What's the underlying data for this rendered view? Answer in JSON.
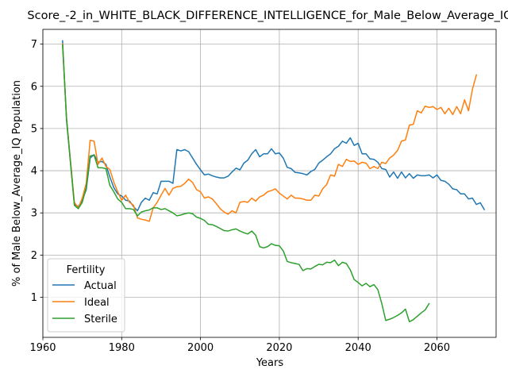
{
  "chart_data": {
    "type": "line",
    "title": "Score_-2_in_WHITE_BLACK_DIFFERENCE_INTELLIGENCE_for_Male_Below_Average_IQ",
    "xlabel": "Years",
    "ylabel": "% of Male Below_Average_IQ Population",
    "xlim": [
      1960,
      2075
    ],
    "ylim": [
      0.05,
      7.35
    ],
    "xticks": [
      1960,
      1980,
      2000,
      2020,
      2040,
      2060
    ],
    "yticks": [
      1,
      2,
      3,
      4,
      5,
      6,
      7
    ],
    "grid": true,
    "legend": {
      "title": "Fertility",
      "position": "lower-left"
    },
    "series": [
      {
        "name": "Actual",
        "color": "#1f77b4",
        "points": [
          [
            1965,
            7.08
          ],
          [
            1966,
            5.2
          ],
          [
            1967,
            4.2
          ],
          [
            1968,
            3.2
          ],
          [
            1969,
            3.15
          ],
          [
            1970,
            3.3
          ],
          [
            1971,
            3.55
          ],
          [
            1972,
            4.3
          ],
          [
            1973,
            4.38
          ],
          [
            1974,
            4.2
          ],
          [
            1975,
            4.22
          ],
          [
            1976,
            4.15
          ],
          [
            1977,
            3.85
          ],
          [
            1978,
            3.6
          ],
          [
            1979,
            3.45
          ],
          [
            1980,
            3.4
          ],
          [
            1981,
            3.3
          ],
          [
            1982,
            3.28
          ],
          [
            1983,
            3.15
          ],
          [
            1984,
            3.05
          ],
          [
            1985,
            3.25
          ],
          [
            1986,
            3.35
          ],
          [
            1987,
            3.3
          ],
          [
            1988,
            3.48
          ],
          [
            1989,
            3.45
          ],
          [
            1990,
            3.75
          ],
          [
            1991,
            3.75
          ],
          [
            1992,
            3.75
          ],
          [
            1993,
            3.7
          ],
          [
            1994,
            4.5
          ],
          [
            1995,
            4.47
          ],
          [
            1996,
            4.5
          ],
          [
            1997,
            4.45
          ],
          [
            1998,
            4.3
          ],
          [
            1999,
            4.15
          ],
          [
            2000,
            4.02
          ],
          [
            2001,
            3.9
          ],
          [
            2002,
            3.92
          ],
          [
            2003,
            3.88
          ],
          [
            2004,
            3.85
          ],
          [
            2005,
            3.83
          ],
          [
            2006,
            3.83
          ],
          [
            2007,
            3.87
          ],
          [
            2008,
            3.97
          ],
          [
            2009,
            4.06
          ],
          [
            2010,
            4.02
          ],
          [
            2011,
            4.18
          ],
          [
            2012,
            4.25
          ],
          [
            2013,
            4.4
          ],
          [
            2014,
            4.5
          ],
          [
            2015,
            4.33
          ],
          [
            2016,
            4.4
          ],
          [
            2017,
            4.4
          ],
          [
            2018,
            4.52
          ],
          [
            2019,
            4.4
          ],
          [
            2020,
            4.42
          ],
          [
            2021,
            4.3
          ],
          [
            2022,
            4.08
          ],
          [
            2023,
            4.05
          ],
          [
            2024,
            3.96
          ],
          [
            2025,
            3.95
          ],
          [
            2026,
            3.93
          ],
          [
            2027,
            3.9
          ],
          [
            2028,
            3.98
          ],
          [
            2029,
            4.03
          ],
          [
            2030,
            4.18
          ],
          [
            2031,
            4.25
          ],
          [
            2032,
            4.33
          ],
          [
            2033,
            4.4
          ],
          [
            2034,
            4.52
          ],
          [
            2035,
            4.58
          ],
          [
            2036,
            4.7
          ],
          [
            2037,
            4.65
          ],
          [
            2038,
            4.78
          ],
          [
            2039,
            4.6
          ],
          [
            2040,
            4.65
          ],
          [
            2041,
            4.4
          ],
          [
            2042,
            4.4
          ],
          [
            2043,
            4.28
          ],
          [
            2044,
            4.27
          ],
          [
            2045,
            4.2
          ],
          [
            2046,
            4.05
          ],
          [
            2047,
            4.03
          ],
          [
            2048,
            3.85
          ],
          [
            2049,
            3.97
          ],
          [
            2050,
            3.82
          ],
          [
            2051,
            3.97
          ],
          [
            2052,
            3.83
          ],
          [
            2053,
            3.93
          ],
          [
            2054,
            3.82
          ],
          [
            2055,
            3.9
          ],
          [
            2056,
            3.88
          ],
          [
            2057,
            3.88
          ],
          [
            2058,
            3.9
          ],
          [
            2059,
            3.83
          ],
          [
            2060,
            3.9
          ],
          [
            2061,
            3.77
          ],
          [
            2062,
            3.75
          ],
          [
            2063,
            3.68
          ],
          [
            2064,
            3.57
          ],
          [
            2065,
            3.55
          ],
          [
            2066,
            3.45
          ],
          [
            2067,
            3.45
          ],
          [
            2068,
            3.33
          ],
          [
            2069,
            3.35
          ],
          [
            2070,
            3.2
          ],
          [
            2071,
            3.24
          ],
          [
            2072,
            3.08
          ]
        ]
      },
      {
        "name": "Ideal",
        "color": "#ff7f0e",
        "points": [
          [
            1965,
            7.0
          ],
          [
            1966,
            5.25
          ],
          [
            1967,
            4.25
          ],
          [
            1968,
            3.25
          ],
          [
            1969,
            3.12
          ],
          [
            1970,
            3.35
          ],
          [
            1971,
            3.7
          ],
          [
            1972,
            4.72
          ],
          [
            1973,
            4.7
          ],
          [
            1974,
            4.15
          ],
          [
            1975,
            4.3
          ],
          [
            1976,
            4.1
          ],
          [
            1977,
            4.03
          ],
          [
            1978,
            3.73
          ],
          [
            1979,
            3.5
          ],
          [
            1980,
            3.3
          ],
          [
            1981,
            3.42
          ],
          [
            1982,
            3.25
          ],
          [
            1983,
            3.18
          ],
          [
            1984,
            2.88
          ],
          [
            1985,
            2.85
          ],
          [
            1986,
            2.83
          ],
          [
            1987,
            2.8
          ],
          [
            1988,
            3.12
          ],
          [
            1989,
            3.25
          ],
          [
            1990,
            3.42
          ],
          [
            1991,
            3.58
          ],
          [
            1992,
            3.42
          ],
          [
            1993,
            3.58
          ],
          [
            1994,
            3.62
          ],
          [
            1995,
            3.63
          ],
          [
            1996,
            3.7
          ],
          [
            1997,
            3.8
          ],
          [
            1998,
            3.72
          ],
          [
            1999,
            3.55
          ],
          [
            2000,
            3.5
          ],
          [
            2001,
            3.35
          ],
          [
            2002,
            3.38
          ],
          [
            2003,
            3.33
          ],
          [
            2004,
            3.22
          ],
          [
            2005,
            3.1
          ],
          [
            2006,
            3.02
          ],
          [
            2007,
            2.97
          ],
          [
            2008,
            3.05
          ],
          [
            2009,
            3.0
          ],
          [
            2010,
            3.25
          ],
          [
            2011,
            3.27
          ],
          [
            2012,
            3.25
          ],
          [
            2013,
            3.35
          ],
          [
            2014,
            3.28
          ],
          [
            2015,
            3.38
          ],
          [
            2016,
            3.42
          ],
          [
            2017,
            3.5
          ],
          [
            2018,
            3.53
          ],
          [
            2019,
            3.57
          ],
          [
            2020,
            3.47
          ],
          [
            2021,
            3.4
          ],
          [
            2022,
            3.33
          ],
          [
            2023,
            3.42
          ],
          [
            2024,
            3.35
          ],
          [
            2025,
            3.35
          ],
          [
            2026,
            3.33
          ],
          [
            2027,
            3.3
          ],
          [
            2028,
            3.3
          ],
          [
            2029,
            3.42
          ],
          [
            2030,
            3.4
          ],
          [
            2031,
            3.57
          ],
          [
            2032,
            3.67
          ],
          [
            2033,
            3.9
          ],
          [
            2034,
            3.87
          ],
          [
            2035,
            4.15
          ],
          [
            2036,
            4.1
          ],
          [
            2037,
            4.27
          ],
          [
            2038,
            4.22
          ],
          [
            2039,
            4.23
          ],
          [
            2040,
            4.15
          ],
          [
            2041,
            4.2
          ],
          [
            2042,
            4.18
          ],
          [
            2043,
            4.05
          ],
          [
            2044,
            4.1
          ],
          [
            2045,
            4.05
          ],
          [
            2046,
            4.2
          ],
          [
            2047,
            4.17
          ],
          [
            2048,
            4.3
          ],
          [
            2049,
            4.37
          ],
          [
            2050,
            4.48
          ],
          [
            2051,
            4.7
          ],
          [
            2052,
            4.73
          ],
          [
            2053,
            5.08
          ],
          [
            2054,
            5.1
          ],
          [
            2055,
            5.42
          ],
          [
            2056,
            5.37
          ],
          [
            2057,
            5.53
          ],
          [
            2058,
            5.5
          ],
          [
            2059,
            5.52
          ],
          [
            2060,
            5.45
          ],
          [
            2061,
            5.5
          ],
          [
            2062,
            5.35
          ],
          [
            2063,
            5.48
          ],
          [
            2064,
            5.33
          ],
          [
            2065,
            5.52
          ],
          [
            2066,
            5.35
          ],
          [
            2067,
            5.68
          ],
          [
            2068,
            5.42
          ],
          [
            2069,
            5.93
          ],
          [
            2070,
            6.27
          ]
        ]
      },
      {
        "name": "Sterile",
        "color": "#2ca02c",
        "points": [
          [
            1965,
            6.98
          ],
          [
            1966,
            5.25
          ],
          [
            1967,
            4.2
          ],
          [
            1968,
            3.18
          ],
          [
            1969,
            3.1
          ],
          [
            1970,
            3.25
          ],
          [
            1971,
            3.6
          ],
          [
            1972,
            4.35
          ],
          [
            1973,
            4.37
          ],
          [
            1974,
            4.07
          ],
          [
            1975,
            4.07
          ],
          [
            1976,
            4.05
          ],
          [
            1977,
            3.65
          ],
          [
            1978,
            3.5
          ],
          [
            1979,
            3.33
          ],
          [
            1980,
            3.25
          ],
          [
            1981,
            3.1
          ],
          [
            1982,
            3.1
          ],
          [
            1983,
            3.08
          ],
          [
            1984,
            2.93
          ],
          [
            1985,
            3.02
          ],
          [
            1986,
            3.05
          ],
          [
            1987,
            3.07
          ],
          [
            1988,
            3.12
          ],
          [
            1989,
            3.12
          ],
          [
            1990,
            3.08
          ],
          [
            1991,
            3.1
          ],
          [
            1992,
            3.05
          ],
          [
            1993,
            3.0
          ],
          [
            1994,
            2.93
          ],
          [
            1995,
            2.95
          ],
          [
            1996,
            2.98
          ],
          [
            1997,
            3.0
          ],
          [
            1998,
            2.98
          ],
          [
            1999,
            2.9
          ],
          [
            2000,
            2.87
          ],
          [
            2001,
            2.82
          ],
          [
            2002,
            2.73
          ],
          [
            2003,
            2.72
          ],
          [
            2004,
            2.68
          ],
          [
            2005,
            2.63
          ],
          [
            2006,
            2.58
          ],
          [
            2007,
            2.57
          ],
          [
            2008,
            2.6
          ],
          [
            2009,
            2.62
          ],
          [
            2010,
            2.57
          ],
          [
            2011,
            2.53
          ],
          [
            2012,
            2.5
          ],
          [
            2013,
            2.57
          ],
          [
            2014,
            2.47
          ],
          [
            2015,
            2.2
          ],
          [
            2016,
            2.17
          ],
          [
            2017,
            2.2
          ],
          [
            2018,
            2.27
          ],
          [
            2019,
            2.23
          ],
          [
            2020,
            2.22
          ],
          [
            2021,
            2.1
          ],
          [
            2022,
            1.85
          ],
          [
            2023,
            1.82
          ],
          [
            2024,
            1.8
          ],
          [
            2025,
            1.78
          ],
          [
            2026,
            1.63
          ],
          [
            2027,
            1.68
          ],
          [
            2028,
            1.67
          ],
          [
            2029,
            1.73
          ],
          [
            2030,
            1.78
          ],
          [
            2031,
            1.77
          ],
          [
            2032,
            1.83
          ],
          [
            2033,
            1.82
          ],
          [
            2034,
            1.88
          ],
          [
            2035,
            1.75
          ],
          [
            2036,
            1.83
          ],
          [
            2037,
            1.8
          ],
          [
            2038,
            1.65
          ],
          [
            2039,
            1.42
          ],
          [
            2040,
            1.35
          ],
          [
            2041,
            1.27
          ],
          [
            2042,
            1.33
          ],
          [
            2043,
            1.25
          ],
          [
            2044,
            1.3
          ],
          [
            2045,
            1.18
          ],
          [
            2046,
            0.85
          ],
          [
            2047,
            0.45
          ],
          [
            2048,
            0.48
          ],
          [
            2049,
            0.52
          ],
          [
            2050,
            0.57
          ],
          [
            2051,
            0.63
          ],
          [
            2052,
            0.72
          ],
          [
            2053,
            0.42
          ],
          [
            2054,
            0.47
          ],
          [
            2055,
            0.55
          ],
          [
            2056,
            0.63
          ],
          [
            2057,
            0.7
          ],
          [
            2058,
            0.85
          ]
        ]
      }
    ]
  }
}
